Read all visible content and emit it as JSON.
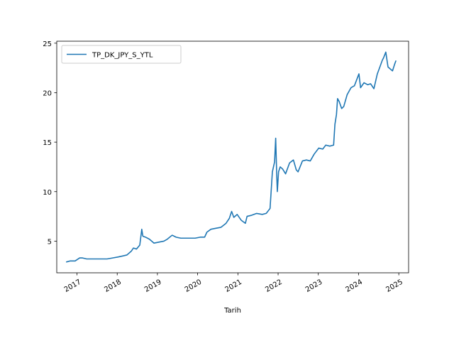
{
  "chart_data": {
    "type": "line",
    "xlabel": "Tarih",
    "ylabel": "",
    "xlim": [
      "2016-07-01",
      "2025-03-31"
    ],
    "ylim": [
      1.8,
      25.2
    ],
    "x_ticks": [
      {
        "date": "2017-01-01",
        "label": "2017"
      },
      {
        "date": "2018-01-01",
        "label": "2018"
      },
      {
        "date": "2019-01-01",
        "label": "2019"
      },
      {
        "date": "2020-01-01",
        "label": "2020"
      },
      {
        "date": "2021-01-01",
        "label": "2021"
      },
      {
        "date": "2022-01-01",
        "label": "2022"
      },
      {
        "date": "2023-01-01",
        "label": "2023"
      },
      {
        "date": "2024-01-01",
        "label": "2024"
      },
      {
        "date": "2025-01-01",
        "label": "2025"
      }
    ],
    "y_ticks": [
      5,
      10,
      15,
      20,
      25
    ],
    "legend": {
      "placement": "upper left"
    },
    "grid": false,
    "series": [
      {
        "name": "TP_DK_JPY_S_YTL",
        "color": "#1f77b4",
        "x": [
          "2016-09-28",
          "2016-11-01",
          "2016-12-15",
          "2017-01-25",
          "2017-02-20",
          "2017-03-30",
          "2017-05-15",
          "2017-07-01",
          "2017-08-20",
          "2017-10-01",
          "2017-11-20",
          "2018-01-10",
          "2018-02-20",
          "2018-03-30",
          "2018-05-10",
          "2018-05-28",
          "2018-06-25",
          "2018-07-25",
          "2018-08-12",
          "2018-08-22",
          "2018-09-15",
          "2018-10-20",
          "2018-12-01",
          "2019-01-15",
          "2019-03-01",
          "2019-04-01",
          "2019-05-15",
          "2019-06-20",
          "2019-08-01",
          "2019-09-15",
          "2019-10-25",
          "2019-12-10",
          "2020-01-25",
          "2020-03-05",
          "2020-03-25",
          "2020-05-01",
          "2020-06-15",
          "2020-08-01",
          "2020-09-15",
          "2020-10-15",
          "2020-11-05",
          "2020-11-25",
          "2020-12-25",
          "2021-02-01",
          "2021-03-10",
          "2021-03-25",
          "2021-05-01",
          "2021-06-20",
          "2021-08-10",
          "2021-09-15",
          "2021-10-20",
          "2021-11-10",
          "2021-11-30",
          "2021-12-10",
          "2021-12-20",
          "2021-12-25",
          "2022-01-05",
          "2022-01-20",
          "2022-02-10",
          "2022-03-10",
          "2022-04-15",
          "2022-05-20",
          "2022-06-15",
          "2022-07-01",
          "2022-08-10",
          "2022-09-15",
          "2022-10-20",
          "2022-11-25",
          "2023-01-05",
          "2023-02-10",
          "2023-03-10",
          "2023-04-15",
          "2023-05-20",
          "2023-06-01",
          "2023-06-15",
          "2023-06-25",
          "2023-07-10",
          "2023-08-01",
          "2023-08-20",
          "2023-09-20",
          "2023-10-25",
          "2023-11-25",
          "2024-01-05",
          "2024-01-20",
          "2024-02-20",
          "2024-03-25",
          "2024-04-20",
          "2024-05-20",
          "2024-06-20",
          "2024-07-10",
          "2024-08-05",
          "2024-08-15",
          "2024-09-05",
          "2024-09-25",
          "2024-10-15",
          "2024-11-05",
          "2024-11-25",
          "2024-12-05"
        ],
        "y": [
          2.9,
          3.0,
          3.0,
          3.3,
          3.3,
          3.2,
          3.2,
          3.2,
          3.2,
          3.2,
          3.3,
          3.4,
          3.5,
          3.6,
          4.0,
          4.3,
          4.2,
          4.6,
          6.2,
          5.5,
          5.4,
          5.2,
          4.8,
          4.9,
          5.0,
          5.2,
          5.6,
          5.4,
          5.3,
          5.3,
          5.3,
          5.3,
          5.4,
          5.4,
          5.9,
          6.2,
          6.3,
          6.4,
          6.8,
          7.3,
          8.0,
          7.4,
          7.7,
          7.1,
          6.8,
          7.5,
          7.6,
          7.8,
          7.7,
          7.8,
          8.3,
          12.0,
          13.0,
          15.4,
          11.5,
          10.0,
          12.0,
          12.5,
          12.3,
          11.8,
          12.9,
          13.2,
          12.2,
          12.0,
          13.1,
          13.2,
          13.1,
          13.8,
          14.4,
          14.3,
          14.7,
          14.6,
          14.7,
          16.8,
          17.8,
          19.4,
          19.1,
          18.4,
          18.6,
          19.8,
          20.5,
          20.7,
          21.9,
          20.5,
          21.0,
          20.8,
          20.9,
          20.4,
          21.9,
          22.5,
          23.3,
          23.5,
          24.1,
          22.6,
          22.4,
          22.2,
          22.9,
          23.2
        ]
      }
    ]
  }
}
